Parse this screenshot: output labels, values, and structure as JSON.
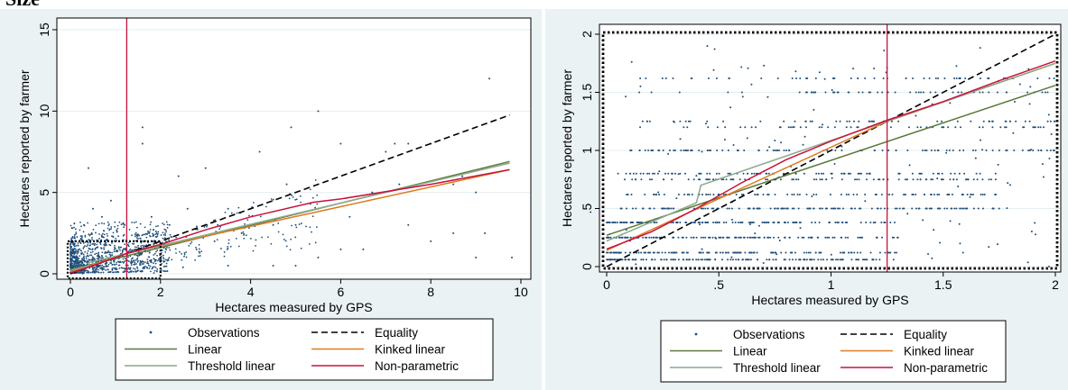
{
  "heading": "Size",
  "colors": {
    "observations": "#1f4e79",
    "equality": "#000000",
    "linear": "#5b7a3a",
    "kinked_linear": "#e07b1f",
    "threshold_linear": "#8aa88c",
    "non_parametric": "#c8123c",
    "marker_line": "#c8123c"
  },
  "legend": {
    "observations": "Observations",
    "equality": "Equality",
    "linear": "Linear",
    "kinked_linear": "Kinked linear",
    "threshold_linear": "Threshold linear",
    "non_parametric": "Non-parametric"
  },
  "chart_data": [
    {
      "type": "scatter",
      "xlabel": "Hectares measured by GPS",
      "ylabel": "Hectares reported by farmer",
      "xlim": [
        0,
        10
      ],
      "ylim": [
        0,
        15
      ],
      "xticks": [
        "0",
        "2",
        "4",
        "6",
        "8",
        "10"
      ],
      "xtick_values": [
        0,
        2,
        4,
        6,
        8,
        10
      ],
      "yticks": [
        "0",
        "5",
        "10",
        "15"
      ],
      "ytick_values": [
        0,
        5,
        10,
        15
      ],
      "grid": true,
      "legend_position": "bottom",
      "vertical_line_x": 1.25,
      "zoom_box": {
        "x": [
          0,
          2
        ],
        "y": [
          0,
          2
        ]
      },
      "series": [
        {
          "name": "Equality",
          "style": "dashed",
          "points": [
            [
              0,
              0
            ],
            [
              9.75,
              9.75
            ]
          ]
        },
        {
          "name": "Linear",
          "points": [
            [
              0,
              0.25
            ],
            [
              9.75,
              6.9
            ]
          ]
        },
        {
          "name": "Kinked linear",
          "points": [
            [
              0,
              0.1
            ],
            [
              1.25,
              1.25
            ],
            [
              9.75,
              6.4
            ]
          ]
        },
        {
          "name": "Threshold linear",
          "points": [
            [
              0,
              0.2
            ],
            [
              0.4,
              0.5
            ],
            [
              0.42,
              0.7
            ],
            [
              9.75,
              6.8
            ]
          ]
        },
        {
          "name": "Non-parametric",
          "points": [
            [
              0,
              0.05
            ],
            [
              0.5,
              0.5
            ],
            [
              1.25,
              1.25
            ],
            [
              2,
              1.8
            ],
            [
              3,
              2.7
            ],
            [
              4,
              3.5
            ],
            [
              5.4,
              4.4
            ],
            [
              6,
              4.6
            ],
            [
              8,
              5.5
            ],
            [
              9.75,
              6.4
            ]
          ]
        }
      ],
      "outliers": [
        [
          9.3,
          12
        ],
        [
          5.5,
          10
        ],
        [
          1.6,
          9
        ],
        [
          1.6,
          8
        ],
        [
          4.9,
          9
        ],
        [
          4.2,
          7.5
        ],
        [
          6,
          8
        ],
        [
          7.2,
          8
        ],
        [
          7,
          7.5
        ],
        [
          8,
          8
        ],
        [
          3,
          6.5
        ],
        [
          4.8,
          5.5
        ],
        [
          6.7,
          5
        ],
        [
          5.5,
          4
        ],
        [
          2.4,
          6
        ],
        [
          4,
          4
        ],
        [
          3.5,
          4
        ],
        [
          6,
          1.5
        ],
        [
          8.5,
          5.5
        ],
        [
          9.8,
          1
        ],
        [
          8.5,
          2.5
        ],
        [
          9.2,
          2.5
        ],
        [
          9,
          1
        ],
        [
          5.5,
          1
        ],
        [
          5,
          0.5
        ],
        [
          2.5,
          0.4
        ],
        [
          3.5,
          0.5
        ],
        [
          4.5,
          0.5
        ],
        [
          0.4,
          6.5
        ],
        [
          0.5,
          4
        ],
        [
          0.3,
          3
        ],
        [
          0.9,
          4.5
        ],
        [
          1.8,
          3.5
        ],
        [
          2.2,
          3
        ],
        [
          3,
          3
        ],
        [
          3.2,
          2
        ],
        [
          2.8,
          1.5
        ],
        [
          2.5,
          2.5
        ],
        [
          4.5,
          3
        ],
        [
          5,
          3
        ],
        [
          7.5,
          3
        ],
        [
          8,
          2
        ],
        [
          6.5,
          1.5
        ],
        [
          7.5,
          8
        ],
        [
          9,
          5
        ],
        [
          8.7,
          6
        ],
        [
          7.3,
          5.5
        ],
        [
          6.2,
          3.5
        ],
        [
          3.8,
          2.5
        ],
        [
          2.6,
          4
        ],
        [
          1.9,
          2.6
        ],
        [
          2.1,
          2.2
        ],
        [
          1.5,
          0.2
        ],
        [
          1.2,
          3
        ],
        [
          0.7,
          3.5
        ]
      ]
    },
    {
      "type": "scatter",
      "xlabel": "Hectares measured by GPS",
      "ylabel": "Hectares reported by farmer",
      "xlim": [
        0,
        2
      ],
      "ylim": [
        0,
        2
      ],
      "xticks": [
        "0",
        ".5",
        "1",
        "1.5",
        "2"
      ],
      "xtick_values": [
        0,
        0.5,
        1,
        1.5,
        2
      ],
      "yticks": [
        "0",
        ".5",
        "1",
        "1.5",
        "2"
      ],
      "ytick_values": [
        0,
        0.5,
        1,
        1.5,
        2
      ],
      "grid": true,
      "legend_position": "bottom",
      "vertical_line_x": 1.25,
      "zoom_box": {
        "x": [
          0,
          2
        ],
        "y": [
          0,
          2
        ]
      },
      "report_levels": [
        0.06,
        0.12,
        0.25,
        0.38,
        0.5,
        0.62,
        0.75,
        0.8,
        1,
        1.2,
        1.25,
        1.5,
        1.62
      ],
      "series": [
        {
          "name": "Equality",
          "style": "dashed",
          "points": [
            [
              0,
              0
            ],
            [
              2,
              2
            ]
          ]
        },
        {
          "name": "Linear",
          "points": [
            [
              0,
              0.27
            ],
            [
              2,
              1.56
            ]
          ]
        },
        {
          "name": "Kinked linear",
          "points": [
            [
              0,
              0.14
            ],
            [
              1.25,
              1.25
            ],
            [
              2,
              1.75
            ]
          ]
        },
        {
          "name": "Threshold linear",
          "points": [
            [
              0,
              0.22
            ],
            [
              0.4,
              0.55
            ],
            [
              0.42,
              0.7
            ],
            [
              2,
              1.75
            ]
          ]
        },
        {
          "name": "Non-parametric",
          "points": [
            [
              0,
              0.15
            ],
            [
              0.2,
              0.3
            ],
            [
              0.4,
              0.5
            ],
            [
              0.6,
              0.72
            ],
            [
              0.8,
              0.92
            ],
            [
              1,
              1.08
            ],
            [
              1.25,
              1.26
            ],
            [
              1.5,
              1.42
            ],
            [
              1.75,
              1.6
            ],
            [
              2,
              1.77
            ]
          ]
        }
      ]
    }
  ]
}
